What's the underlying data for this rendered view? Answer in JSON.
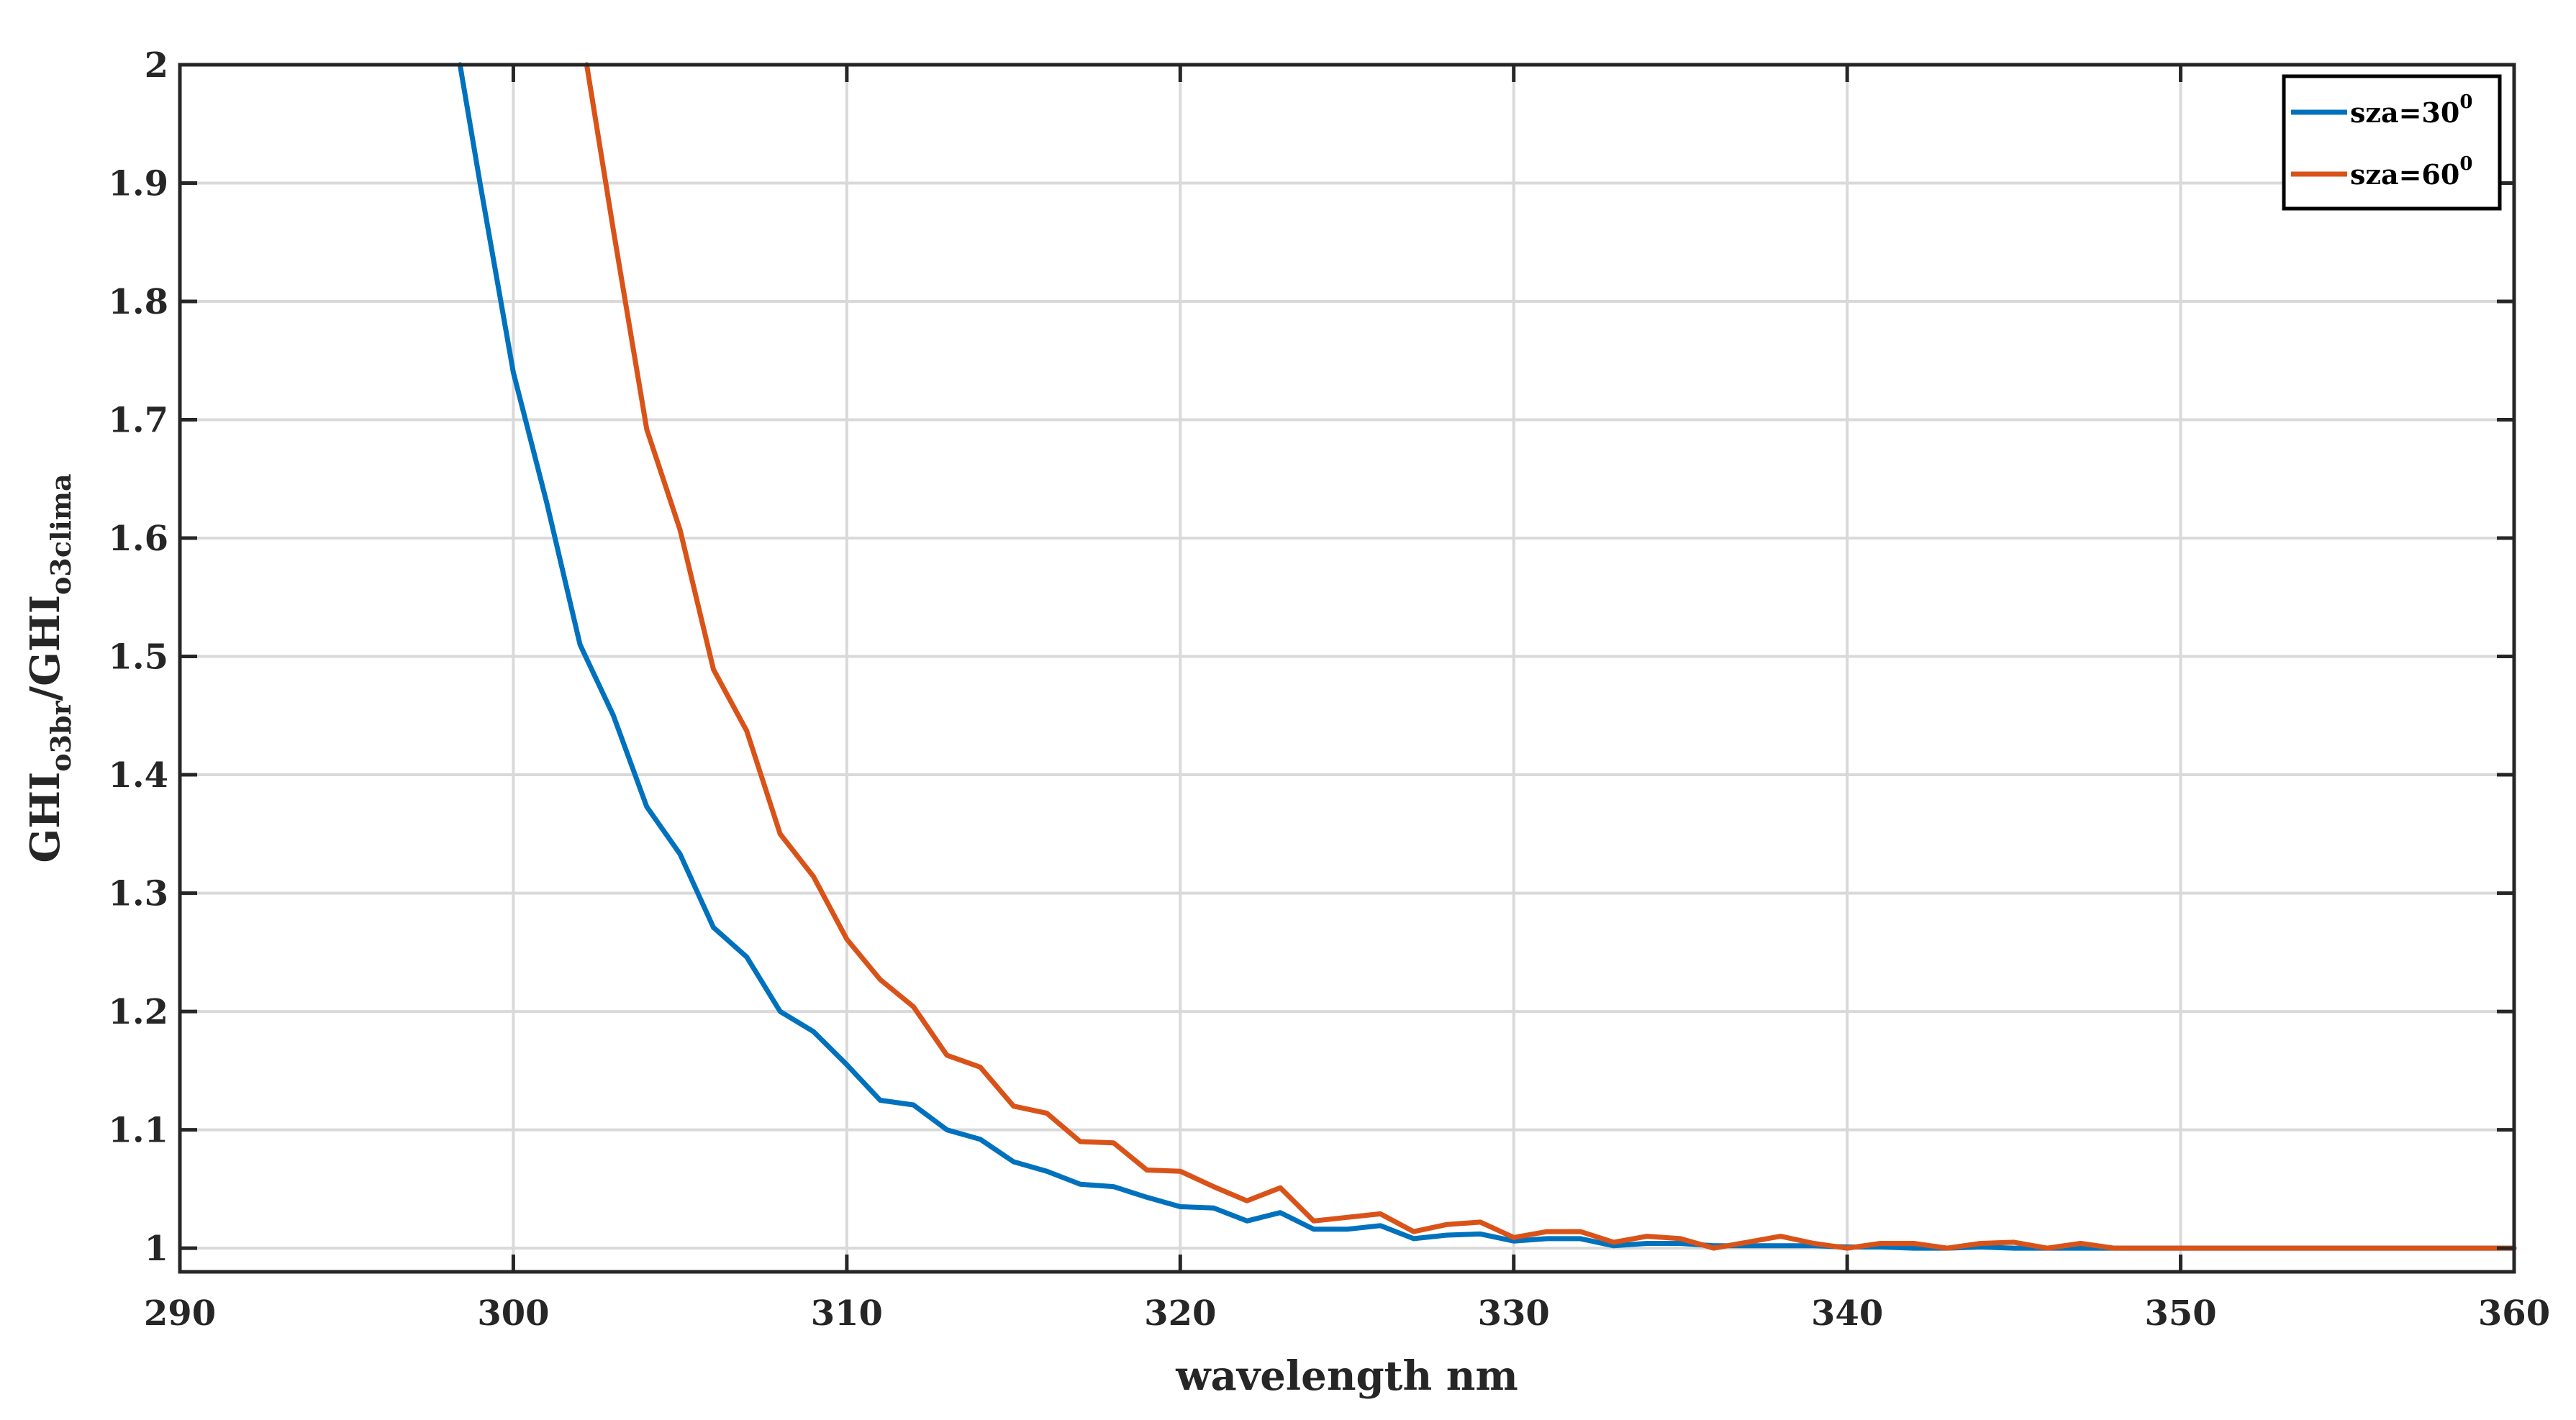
{
  "chart_data": {
    "type": "line",
    "xlabel": "wavelength nm",
    "ylabel": {
      "main1": "GHI",
      "sub1": "o3br",
      "sep": "/GHI",
      "sub2": "o3clima"
    },
    "xlim": [
      290,
      360
    ],
    "ylim": [
      0.98,
      2
    ],
    "xticks": [
      "290",
      "300",
      "310",
      "320",
      "330",
      "340",
      "350",
      "360"
    ],
    "yticks": [
      "1",
      "1.1",
      "1.2",
      "1.3",
      "1.4",
      "1.5",
      "1.6",
      "1.7",
      "1.8",
      "1.9",
      "2"
    ],
    "grid": true,
    "legend_position": "top-right",
    "series": [
      {
        "name": "sza=30",
        "name_sup": "0",
        "color": "#0072BD",
        "x": [
          298.4,
          299,
          300,
          301,
          302,
          303,
          304,
          305,
          306,
          307,
          308,
          309,
          310,
          311,
          312,
          313,
          314,
          315,
          316,
          317,
          318,
          319,
          320,
          321,
          322,
          323,
          324,
          325,
          326,
          327,
          328,
          329,
          330,
          331,
          332,
          333,
          334,
          335,
          336,
          337,
          338,
          339,
          340,
          341,
          342,
          343,
          344,
          345,
          346,
          347,
          348,
          349,
          350,
          355,
          360
        ],
        "y": [
          2.0,
          1.9,
          1.74,
          1.63,
          1.51,
          1.45,
          1.373,
          1.333,
          1.271,
          1.246,
          1.2,
          1.183,
          1.155,
          1.125,
          1.121,
          1.1,
          1.092,
          1.073,
          1.065,
          1.054,
          1.052,
          1.043,
          1.035,
          1.034,
          1.023,
          1.03,
          1.016,
          1.016,
          1.019,
          1.008,
          1.011,
          1.012,
          1.006,
          1.008,
          1.008,
          1.002,
          1.004,
          1.004,
          1.002,
          1.002,
          1.002,
          1.002,
          1.001,
          1.001,
          1.0,
          1.0,
          1.001,
          1.0,
          1.0,
          1.0,
          1.0,
          1.0,
          1.0,
          1.0,
          1.0
        ]
      },
      {
        "name": "sza=60",
        "name_sup": "0",
        "color": "#D95319",
        "x": [
          302.2,
          303,
          304,
          305,
          306,
          307,
          308,
          309,
          310,
          311,
          312,
          313,
          314,
          315,
          316,
          317,
          318,
          319,
          320,
          321,
          322,
          323,
          324,
          325,
          326,
          327,
          328,
          329,
          330,
          331,
          332,
          333,
          334,
          335,
          336,
          337,
          338,
          339,
          340,
          341,
          342,
          343,
          344,
          345,
          346,
          347,
          348,
          349,
          350,
          355,
          360
        ],
        "y": [
          2.0,
          1.86,
          1.692,
          1.607,
          1.489,
          1.437,
          1.35,
          1.314,
          1.261,
          1.227,
          1.204,
          1.163,
          1.153,
          1.12,
          1.114,
          1.09,
          1.089,
          1.066,
          1.065,
          1.052,
          1.04,
          1.051,
          1.023,
          1.026,
          1.029,
          1.014,
          1.02,
          1.022,
          1.009,
          1.014,
          1.014,
          1.005,
          1.01,
          1.008,
          1.0,
          1.005,
          1.01,
          1.004,
          1.0,
          1.004,
          1.004,
          1.0,
          1.004,
          1.005,
          1.0,
          1.004,
          1.0,
          1.0,
          1.0,
          1.0,
          1.0
        ]
      }
    ]
  }
}
